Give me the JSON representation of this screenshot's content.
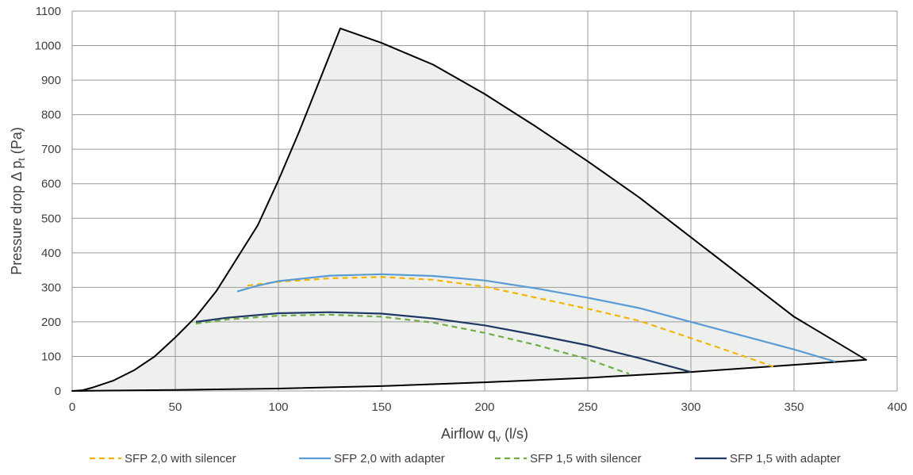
{
  "chart_data": {
    "type": "line",
    "xlabel": "Airflow q",
    "xlabel_sub": "v",
    "xlabel_unit": " (l/s)",
    "ylabel": "Pressure drop Δ p",
    "ylabel_sub": "t",
    "ylabel_unit": " (Pa)",
    "xlim": [
      0,
      400
    ],
    "ylim": [
      0,
      1100
    ],
    "x_ticks": [
      0,
      50,
      100,
      150,
      200,
      250,
      300,
      350,
      400
    ],
    "y_ticks": [
      0,
      100,
      200,
      300,
      400,
      500,
      600,
      700,
      800,
      900,
      1000,
      1100
    ],
    "grid": true,
    "legend_position": "bottom",
    "operating_area": {
      "fill_color": "#eef0ee",
      "border_color": "#000000",
      "boundary": [
        [
          0,
          0
        ],
        [
          5,
          2
        ],
        [
          10,
          10
        ],
        [
          20,
          30
        ],
        [
          30,
          60
        ],
        [
          40,
          100
        ],
        [
          50,
          155
        ],
        [
          60,
          215
        ],
        [
          70,
          290
        ],
        [
          80,
          385
        ],
        [
          90,
          480
        ],
        [
          100,
          610
        ],
        [
          110,
          750
        ],
        [
          120,
          900
        ],
        [
          130,
          1050
        ],
        [
          150,
          1008
        ],
        [
          175,
          945
        ],
        [
          200,
          860
        ],
        [
          225,
          765
        ],
        [
          250,
          665
        ],
        [
          275,
          560
        ],
        [
          300,
          445
        ],
        [
          325,
          330
        ],
        [
          350,
          215
        ],
        [
          385,
          90
        ],
        [
          300,
          55
        ],
        [
          250,
          38
        ],
        [
          200,
          25
        ],
        [
          150,
          14
        ],
        [
          100,
          7
        ],
        [
          50,
          3
        ],
        [
          0,
          0
        ]
      ]
    },
    "series": [
      {
        "name": "SFP 2,0 with silencer",
        "color": "#f5b400",
        "dashed": true,
        "points": [
          [
            85,
            305
          ],
          [
            100,
            316
          ],
          [
            125,
            326
          ],
          [
            150,
            330
          ],
          [
            175,
            322
          ],
          [
            200,
            302
          ],
          [
            225,
            270
          ],
          [
            250,
            238
          ],
          [
            275,
            203
          ],
          [
            300,
            153
          ],
          [
            325,
            102
          ],
          [
            340,
            70
          ]
        ]
      },
      {
        "name": "SFP 2,0 with adapter",
        "color": "#5b9bd5",
        "dashed": false,
        "points": [
          [
            80,
            288
          ],
          [
            90,
            305
          ],
          [
            100,
            318
          ],
          [
            125,
            334
          ],
          [
            150,
            338
          ],
          [
            175,
            333
          ],
          [
            200,
            320
          ],
          [
            225,
            297
          ],
          [
            250,
            270
          ],
          [
            275,
            240
          ],
          [
            300,
            200
          ],
          [
            325,
            160
          ],
          [
            350,
            120
          ],
          [
            370,
            85
          ]
        ]
      },
      {
        "name": "SFP 1,5 with silencer",
        "color": "#70ad47",
        "dashed": true,
        "points": [
          [
            60,
            195
          ],
          [
            75,
            207
          ],
          [
            100,
            218
          ],
          [
            125,
            221
          ],
          [
            150,
            215
          ],
          [
            175,
            198
          ],
          [
            200,
            168
          ],
          [
            225,
            133
          ],
          [
            250,
            92
          ],
          [
            265,
            60
          ],
          [
            270,
            50
          ]
        ]
      },
      {
        "name": "SFP 1,5 with adapter",
        "color": "#203864",
        "dashed": false,
        "points": [
          [
            60,
            200
          ],
          [
            75,
            212
          ],
          [
            100,
            225
          ],
          [
            125,
            228
          ],
          [
            150,
            224
          ],
          [
            175,
            210
          ],
          [
            200,
            190
          ],
          [
            225,
            162
          ],
          [
            250,
            132
          ],
          [
            275,
            95
          ],
          [
            300,
            55
          ]
        ]
      }
    ]
  }
}
